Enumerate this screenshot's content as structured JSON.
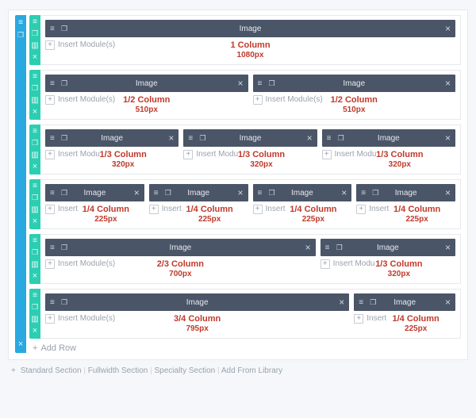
{
  "colors": {
    "section_rail": "#29a9e0",
    "row_rail": "#2cceb2",
    "module_bg": "#4a5568",
    "module_text": "#e6e9ee",
    "overlay_text": "#c0392b",
    "muted": "#9aa2ad",
    "border": "#e6e9ee",
    "canvas_bg": "#f5f7fa"
  },
  "module_label": "Image",
  "insert_label": "Insert Module(s)",
  "insert_label_short": "Insert",
  "insert_label_medium": "Insert Modu",
  "add_row_label": "Add Row",
  "footer": {
    "items": [
      "Standard Section",
      "Fullwidth Section",
      "Specialty Section",
      "Add From Library"
    ],
    "separator": "|"
  },
  "rows": [
    {
      "id": "r1",
      "cols": [
        {
          "span": "full",
          "overlay_title": "1 Column",
          "overlay_sub": "1080px",
          "insert": "full",
          "shift": false
        }
      ]
    },
    {
      "id": "r2",
      "cols": [
        {
          "span": "half",
          "overlay_title": "1/2 Column",
          "overlay_sub": "510px",
          "insert": "full",
          "shift": false
        },
        {
          "span": "half",
          "overlay_title": "1/2 Column",
          "overlay_sub": "510px",
          "insert": "full",
          "shift": false
        }
      ]
    },
    {
      "id": "r3",
      "cols": [
        {
          "span": "third",
          "overlay_title": "1/3 Column",
          "overlay_sub": "320px",
          "insert": "medium",
          "shift": true
        },
        {
          "span": "third",
          "overlay_title": "1/3 Column",
          "overlay_sub": "320px",
          "insert": "medium",
          "shift": true
        },
        {
          "span": "third",
          "overlay_title": "1/3 Column",
          "overlay_sub": "320px",
          "insert": "medium",
          "shift": true
        }
      ]
    },
    {
      "id": "r4",
      "cols": [
        {
          "span": "quarter",
          "overlay_title": "1/4 Column",
          "overlay_sub": "225px",
          "insert": "short",
          "shift": true
        },
        {
          "span": "quarter",
          "overlay_title": "1/4 Column",
          "overlay_sub": "225px",
          "insert": "short",
          "shift": true
        },
        {
          "span": "quarter",
          "overlay_title": "1/4 Column",
          "overlay_sub": "225px",
          "insert": "short",
          "shift": true
        },
        {
          "span": "quarter",
          "overlay_title": "1/4 Column",
          "overlay_sub": "225px",
          "insert": "short",
          "shift": true
        }
      ]
    },
    {
      "id": "r5",
      "cols": [
        {
          "span": "two-thirds",
          "overlay_title": "2/3 Column",
          "overlay_sub": "700px",
          "insert": "full",
          "shift": false
        },
        {
          "span": "third",
          "overlay_title": "1/3 Column",
          "overlay_sub": "320px",
          "insert": "medium",
          "shift": true
        }
      ]
    },
    {
      "id": "r6",
      "cols": [
        {
          "span": "three-quarters",
          "overlay_title": "3/4 Column",
          "overlay_sub": "795px",
          "insert": "full",
          "shift": false
        },
        {
          "span": "quarter",
          "overlay_title": "1/4 Column",
          "overlay_sub": "225px",
          "insert": "short",
          "shift": true
        }
      ]
    }
  ]
}
